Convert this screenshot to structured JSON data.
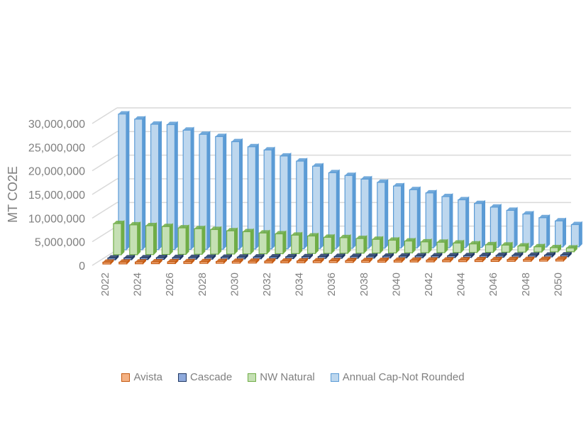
{
  "chart_data": {
    "type": "bar",
    "style": "3d-column",
    "title": "",
    "xlabel": "",
    "ylabel": "MT CO2E",
    "ylim": [
      0,
      30000000
    ],
    "yticks": [
      "0",
      "5,000,000",
      "10,000,000",
      "15,000,000",
      "20,000,000",
      "25,000,000",
      "30,000,000"
    ],
    "ytick_values": [
      0,
      5000000,
      10000000,
      15000000,
      20000000,
      25000000,
      30000000
    ],
    "categories": [
      2022,
      2023,
      2024,
      2025,
      2026,
      2027,
      2028,
      2029,
      2030,
      2031,
      2032,
      2033,
      2034,
      2035,
      2036,
      2037,
      2038,
      2039,
      2040,
      2041,
      2042,
      2043,
      2044,
      2045,
      2046,
      2047,
      2048,
      2049,
      2050
    ],
    "xtick_labels": [
      "2022",
      "2024",
      "2026",
      "2028",
      "2030",
      "2032",
      "2034",
      "2036",
      "2038",
      "2040",
      "2042",
      "2044",
      "2046",
      "2048",
      "2050"
    ],
    "grid": true,
    "legend_position": "bottom",
    "series": [
      {
        "name": "Avista",
        "color": "#c55a11",
        "fill": "#f4b183",
        "values": [
          300000,
          290000,
          280000,
          270000,
          260000,
          250000,
          240000,
          230000,
          220000,
          210000,
          200000,
          190000,
          180000,
          170000,
          160000,
          150000,
          140000,
          130000,
          120000,
          110000,
          100000,
          95000,
          90000,
          85000,
          80000,
          75000,
          70000,
          65000,
          60000
        ]
      },
      {
        "name": "Cascade",
        "color": "#203864",
        "fill": "#8faadc",
        "values": [
          250000,
          240000,
          235000,
          230000,
          225000,
          215000,
          205000,
          200000,
          190000,
          180000,
          170000,
          160000,
          150000,
          140000,
          135000,
          130000,
          120000,
          115000,
          110000,
          100000,
          95000,
          90000,
          85000,
          80000,
          75000,
          70000,
          65000,
          60000,
          55000
        ]
      },
      {
        "name": "NW Natural",
        "color": "#70ad47",
        "fill": "#c5e0b4",
        "values": [
          6600000,
          6300000,
          6100000,
          5900000,
          5600000,
          5400000,
          5200000,
          4900000,
          4700000,
          4400000,
          4200000,
          3900000,
          3700000,
          3400000,
          3300000,
          3100000,
          2900000,
          2700000,
          2500000,
          2300000,
          2200000,
          2000000,
          1800000,
          1600000,
          1500000,
          1300000,
          1100000,
          900000,
          800000
        ]
      },
      {
        "name": "Annual Cap-Not Rounded",
        "color": "#5b9bd5",
        "fill": "#bdd7ee",
        "values": [
          28700000,
          27600000,
          26500000,
          26400000,
          25200000,
          24300000,
          23800000,
          22700000,
          21600000,
          20900000,
          19600000,
          18500000,
          17400000,
          16000000,
          15400000,
          14600000,
          13900000,
          13100000,
          12300000,
          11600000,
          10800000,
          10100000,
          9300000,
          8500000,
          7800000,
          7000000,
          6200000,
          5500000,
          4700000
        ]
      }
    ]
  }
}
